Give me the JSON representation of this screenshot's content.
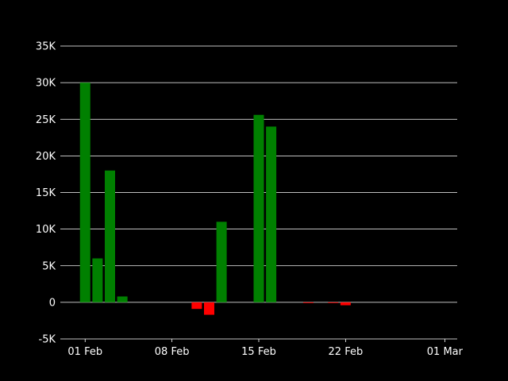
{
  "chart_data": {
    "type": "bar",
    "title": "",
    "xlabel": "",
    "ylabel": "",
    "grid": "horizontal",
    "legend": "none",
    "background_color": "#000000",
    "grid_color": "#ffffff",
    "text_color": "#ffffff",
    "positive_color": "#008000",
    "negative_color": "#ff0000",
    "ylim": [
      -5000,
      35000
    ],
    "xlim": [
      "2024-01-30",
      "2024-03-02"
    ],
    "y_ticks": [
      {
        "value": -5000,
        "label": "-5K"
      },
      {
        "value": 0,
        "label": "0"
      },
      {
        "value": 5000,
        "label": "5K"
      },
      {
        "value": 10000,
        "label": "10K"
      },
      {
        "value": 15000,
        "label": "15K"
      },
      {
        "value": 20000,
        "label": "20K"
      },
      {
        "value": 25000,
        "label": "25K"
      },
      {
        "value": 30000,
        "label": "30K"
      },
      {
        "value": 35000,
        "label": "35K"
      }
    ],
    "x_ticks": [
      {
        "value": "2024-02-01",
        "label": "01 Feb"
      },
      {
        "value": "2024-02-08",
        "label": "08 Feb"
      },
      {
        "value": "2024-02-15",
        "label": "15 Feb"
      },
      {
        "value": "2024-02-22",
        "label": "22 Feb"
      },
      {
        "value": "2024-03-01",
        "label": "01 Mar"
      }
    ],
    "bars": [
      {
        "date": "2024-02-01",
        "value": 30000
      },
      {
        "date": "2024-02-02",
        "value": 6000
      },
      {
        "date": "2024-02-03",
        "value": 18000
      },
      {
        "date": "2024-02-04",
        "value": 800
      },
      {
        "date": "2024-02-10",
        "value": -900
      },
      {
        "date": "2024-02-11",
        "value": -1700
      },
      {
        "date": "2024-02-12",
        "value": 11000
      },
      {
        "date": "2024-02-15",
        "value": 25600
      },
      {
        "date": "2024-02-16",
        "value": 24000
      },
      {
        "date": "2024-02-19",
        "value": -100
      },
      {
        "date": "2024-02-21",
        "value": -100
      },
      {
        "date": "2024-02-22",
        "value": -400
      }
    ]
  }
}
